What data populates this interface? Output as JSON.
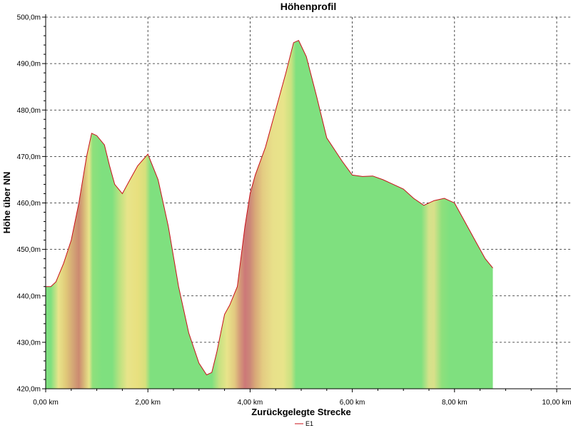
{
  "chart_data": {
    "type": "area",
    "title": "Höhenprofil",
    "xlabel": "Zurückgelegte Strecke",
    "ylabel": "Höhe über NN",
    "xlim": [
      0,
      10
    ],
    "ylim": [
      420,
      500
    ],
    "x_ticks": [
      0,
      2,
      4,
      6,
      8,
      10
    ],
    "x_tick_labels": [
      "0,00 km",
      "2,00 km",
      "4,00 km",
      "6,00 km",
      "8,00 km",
      "10,00 km"
    ],
    "y_ticks": [
      420,
      430,
      440,
      450,
      460,
      470,
      480,
      490,
      500
    ],
    "y_tick_labels": [
      "420,0m",
      "430,0m",
      "440,0m",
      "450,0m",
      "460,0m",
      "470,0m",
      "480,0m",
      "490,0m",
      "500,0m"
    ],
    "grid": true,
    "legend_position": "bottom-center",
    "series": [
      {
        "name": "E1",
        "color": "#c8101a",
        "x": [
          0.0,
          0.1,
          0.2,
          0.35,
          0.5,
          0.65,
          0.8,
          0.9,
          1.0,
          1.15,
          1.25,
          1.35,
          1.5,
          1.65,
          1.8,
          2.0,
          2.2,
          2.4,
          2.6,
          2.8,
          3.0,
          3.15,
          3.25,
          3.35,
          3.5,
          3.6,
          3.75,
          3.9,
          4.0,
          4.1,
          4.3,
          4.5,
          4.7,
          4.85,
          4.95,
          5.1,
          5.3,
          5.5,
          5.8,
          6.0,
          6.2,
          6.4,
          6.6,
          6.8,
          7.0,
          7.2,
          7.4,
          7.6,
          7.8,
          8.0,
          8.2,
          8.4,
          8.6,
          8.75
        ],
        "y": [
          442,
          442,
          443,
          447,
          452,
          460,
          470,
          475,
          474.5,
          472.5,
          468,
          464,
          462,
          465,
          468,
          470.5,
          465,
          455,
          442,
          432,
          425.5,
          423,
          423.5,
          428,
          436,
          438,
          442,
          455,
          462,
          466,
          472,
          480,
          488,
          494.5,
          495,
          491.5,
          483,
          474,
          469,
          466,
          465.7,
          465.8,
          465,
          464,
          463,
          461,
          459.5,
          460.5,
          461,
          460,
          456,
          452,
          448,
          446
        ]
      }
    ],
    "fill_gradient_stops": [
      {
        "x": 0.0,
        "color": "#7fe07f"
      },
      {
        "x": 0.1,
        "color": "#7fe07f"
      },
      {
        "x": 0.25,
        "color": "#e8e48a"
      },
      {
        "x": 0.4,
        "color": "#e0c878"
      },
      {
        "x": 0.55,
        "color": "#d2a275"
      },
      {
        "x": 0.65,
        "color": "#cc8a70"
      },
      {
        "x": 0.75,
        "color": "#d8b878"
      },
      {
        "x": 0.85,
        "color": "#e8e48a"
      },
      {
        "x": 0.92,
        "color": "#8fe07c"
      },
      {
        "x": 1.1,
        "color": "#7fe07f"
      },
      {
        "x": 1.3,
        "color": "#7fe07f"
      },
      {
        "x": 1.45,
        "color": "#bce280"
      },
      {
        "x": 1.6,
        "color": "#e8e48a"
      },
      {
        "x": 1.8,
        "color": "#e8e07f"
      },
      {
        "x": 1.95,
        "color": "#d6e07c"
      },
      {
        "x": 2.05,
        "color": "#7fe07f"
      },
      {
        "x": 3.25,
        "color": "#7fe07f"
      },
      {
        "x": 3.4,
        "color": "#c7e282"
      },
      {
        "x": 3.55,
        "color": "#e8e48a"
      },
      {
        "x": 3.7,
        "color": "#e2c880"
      },
      {
        "x": 3.8,
        "color": "#d49a78"
      },
      {
        "x": 3.9,
        "color": "#cc7878"
      },
      {
        "x": 4.0,
        "color": "#cc8878"
      },
      {
        "x": 4.1,
        "color": "#d8a878"
      },
      {
        "x": 4.25,
        "color": "#e4cc82"
      },
      {
        "x": 4.45,
        "color": "#e8e08a"
      },
      {
        "x": 4.65,
        "color": "#e8e48a"
      },
      {
        "x": 4.8,
        "color": "#cae280"
      },
      {
        "x": 4.9,
        "color": "#7fe07f"
      },
      {
        "x": 7.35,
        "color": "#7fe07f"
      },
      {
        "x": 7.5,
        "color": "#d4e28a"
      },
      {
        "x": 7.6,
        "color": "#d8e08a"
      },
      {
        "x": 7.75,
        "color": "#8fe07c"
      },
      {
        "x": 7.9,
        "color": "#7fe07f"
      },
      {
        "x": 8.75,
        "color": "#7fe07f"
      }
    ]
  }
}
